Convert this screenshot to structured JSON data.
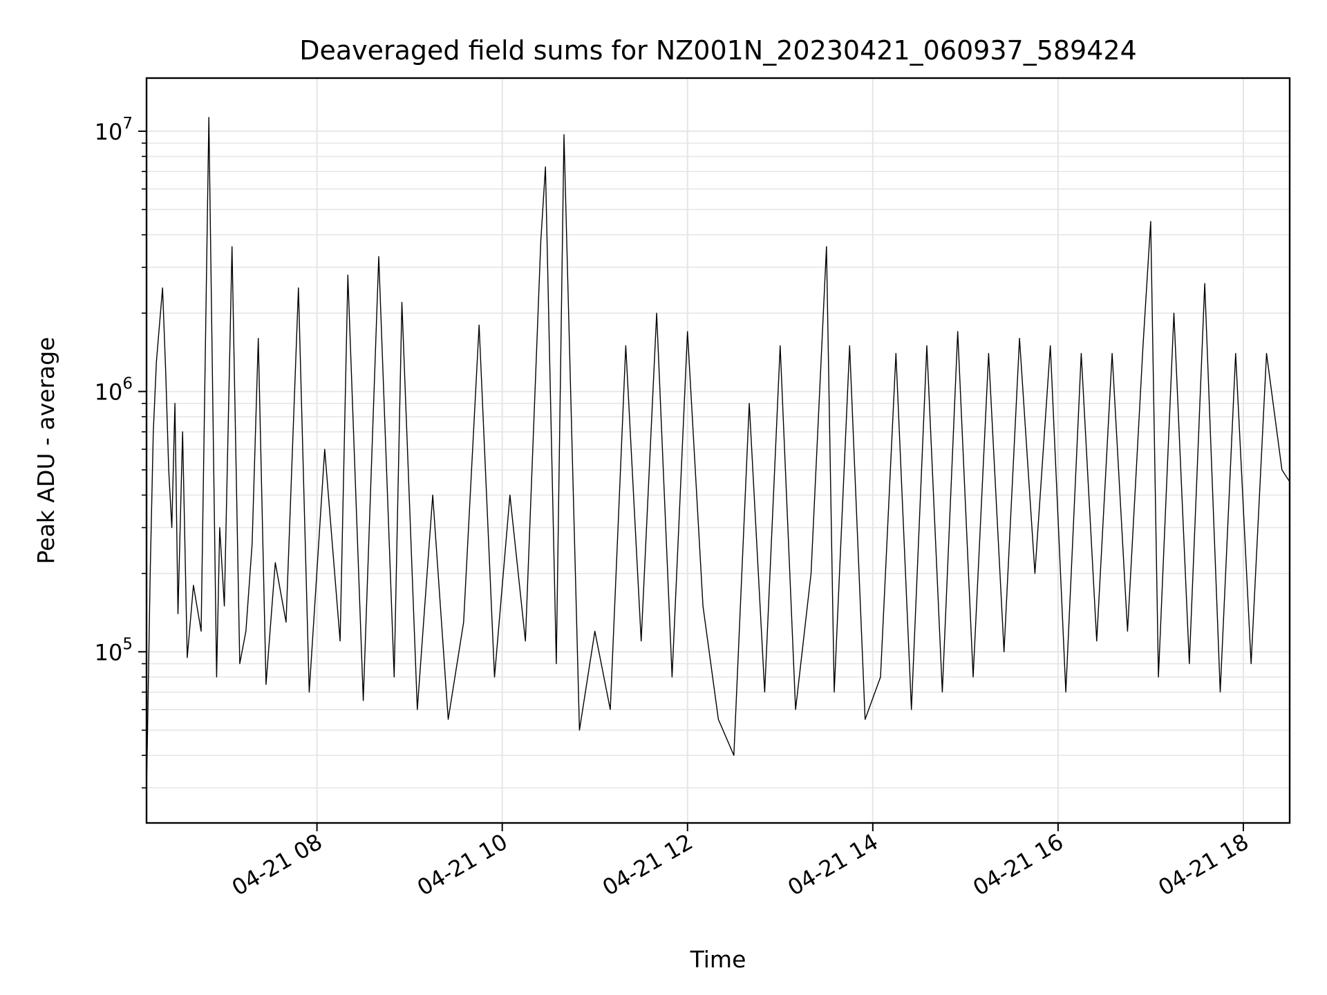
{
  "chart_data": {
    "type": "line",
    "title": "Deaveraged field sums for NZ001N_20230421_060937_589424",
    "xlabel": "Time",
    "ylabel": "Peak ADU - average",
    "x_axis": {
      "kind": "datetime",
      "range": [
        "2023-04-21T06:09:37",
        "2023-04-21T18:30:00"
      ],
      "ticks": [
        {
          "value": "2023-04-21T08:00",
          "label": "04-21 08"
        },
        {
          "value": "2023-04-21T10:00",
          "label": "04-21 10"
        },
        {
          "value": "2023-04-21T12:00",
          "label": "04-21 12"
        },
        {
          "value": "2023-04-21T14:00",
          "label": "04-21 14"
        },
        {
          "value": "2023-04-21T16:00",
          "label": "04-21 16"
        },
        {
          "value": "2023-04-21T18:00",
          "label": "04-21 18"
        }
      ]
    },
    "y_axis": {
      "scale": "log",
      "range": [
        22000,
        16000000
      ],
      "ticks": [
        {
          "value": 100000,
          "base": "10",
          "exp": "5"
        },
        {
          "value": 1000000,
          "base": "10",
          "exp": "6"
        },
        {
          "value": 10000000,
          "base": "10",
          "exp": "7"
        }
      ]
    },
    "grid": true,
    "line_color": "#000000",
    "series": [
      {
        "x": [
          "2023-04-21T06:09:37",
          "2023-04-21T06:10",
          "2023-04-21T06:12",
          "2023-04-21T06:14",
          "2023-04-21T06:16",
          "2023-04-21T06:18",
          "2023-04-21T06:20",
          "2023-04-21T06:22",
          "2023-04-21T06:24",
          "2023-04-21T06:26",
          "2023-04-21T06:28",
          "2023-04-21T06:30",
          "2023-04-21T06:33",
          "2023-04-21T06:36",
          "2023-04-21T06:40",
          "2023-04-21T06:45",
          "2023-04-21T06:50",
          "2023-04-21T06:55",
          "2023-04-21T06:57",
          "2023-04-21T07:00",
          "2023-04-21T07:05",
          "2023-04-21T07:10",
          "2023-04-21T07:14",
          "2023-04-21T07:18",
          "2023-04-21T07:22",
          "2023-04-21T07:27",
          "2023-04-21T07:33",
          "2023-04-21T07:40",
          "2023-04-21T07:48",
          "2023-04-21T07:55",
          "2023-04-21T08:05",
          "2023-04-21T08:15",
          "2023-04-21T08:20",
          "2023-04-21T08:30",
          "2023-04-21T08:40",
          "2023-04-21T08:50",
          "2023-04-21T08:55",
          "2023-04-21T09:05",
          "2023-04-21T09:15",
          "2023-04-21T09:25",
          "2023-04-21T09:35",
          "2023-04-21T09:45",
          "2023-04-21T09:55",
          "2023-04-21T10:05",
          "2023-04-21T10:15",
          "2023-04-21T10:25",
          "2023-04-21T10:28",
          "2023-04-21T10:35",
          "2023-04-21T10:40",
          "2023-04-21T10:50",
          "2023-04-21T11:00",
          "2023-04-21T11:10",
          "2023-04-21T11:20",
          "2023-04-21T11:30",
          "2023-04-21T11:40",
          "2023-04-21T11:50",
          "2023-04-21T12:00",
          "2023-04-21T12:10",
          "2023-04-21T12:20",
          "2023-04-21T12:30",
          "2023-04-21T12:40",
          "2023-04-21T12:50",
          "2023-04-21T13:00",
          "2023-04-21T13:10",
          "2023-04-21T13:20",
          "2023-04-21T13:30",
          "2023-04-21T13:35",
          "2023-04-21T13:45",
          "2023-04-21T13:55",
          "2023-04-21T14:05",
          "2023-04-21T14:15",
          "2023-04-21T14:25",
          "2023-04-21T14:35",
          "2023-04-21T14:45",
          "2023-04-21T14:55",
          "2023-04-21T15:05",
          "2023-04-21T15:15",
          "2023-04-21T15:25",
          "2023-04-21T15:35",
          "2023-04-21T15:45",
          "2023-04-21T15:55",
          "2023-04-21T16:05",
          "2023-04-21T16:15",
          "2023-04-21T16:25",
          "2023-04-21T16:35",
          "2023-04-21T16:45",
          "2023-04-21T16:55",
          "2023-04-21T17:00",
          "2023-04-21T17:05",
          "2023-04-21T17:15",
          "2023-04-21T17:25",
          "2023-04-21T17:35",
          "2023-04-21T17:45",
          "2023-04-21T17:55",
          "2023-04-21T18:05",
          "2023-04-21T18:15",
          "2023-04-21T18:25",
          "2023-04-21T18:30"
        ],
        "y": [
          30000,
          40000,
          200000,
          700000,
          1300000,
          1800000,
          2500000,
          1200000,
          500000,
          300000,
          900000,
          140000,
          700000,
          95000,
          180000,
          120000,
          11300000,
          80000,
          300000,
          150000,
          3600000,
          90000,
          120000,
          260000,
          1600000,
          75000,
          220000,
          130000,
          2500000,
          70000,
          600000,
          110000,
          2800000,
          65000,
          3300000,
          80000,
          2200000,
          60000,
          400000,
          55000,
          130000,
          1800000,
          80000,
          400000,
          110000,
          3800000,
          7300000,
          90000,
          9700000,
          50000,
          120000,
          60000,
          1500000,
          110000,
          2000000,
          80000,
          1700000,
          150000,
          55000,
          40000,
          900000,
          70000,
          1500000,
          60000,
          200000,
          3600000,
          70000,
          1500000,
          55000,
          80000,
          1400000,
          60000,
          1500000,
          70000,
          1700000,
          80000,
          1400000,
          100000,
          1600000,
          200000,
          1500000,
          70000,
          1400000,
          110000,
          1400000,
          120000,
          1500000,
          4500000,
          80000,
          2000000,
          90000,
          2600000,
          70000,
          1400000,
          90000,
          1400000,
          500000,
          450000
        ]
      }
    ]
  }
}
